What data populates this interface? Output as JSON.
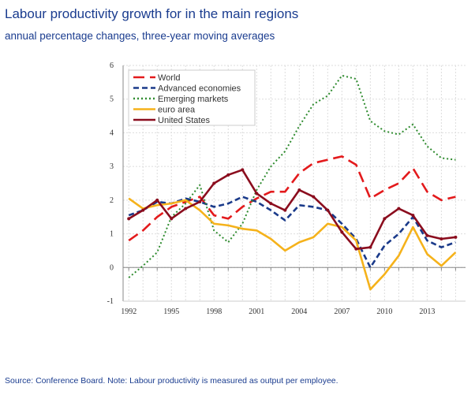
{
  "title": "Labour productivity growth for in the main regions",
  "subtitle": "annual percentage changes, three-year moving averages",
  "source": "Source: Conference Board. Note: Labour productivity is measured as output per employee.",
  "chart_data": {
    "type": "line",
    "title": "Labour productivity growth for in the main regions",
    "xlabel": "",
    "ylabel": "",
    "x": [
      1992,
      1993,
      1994,
      1995,
      1996,
      1997,
      1998,
      1999,
      2000,
      2001,
      2002,
      2003,
      2004,
      2005,
      2006,
      2007,
      2008,
      2009,
      2010,
      2011,
      2012,
      2013,
      2014,
      2015
    ],
    "xticks": [
      "1992",
      "1995",
      "1998",
      "2001",
      "2004",
      "2007",
      "2010",
      "2013"
    ],
    "yticks": [
      "-1",
      "0",
      "1",
      "2",
      "3",
      "4",
      "5",
      "6"
    ],
    "ylim": [
      -1,
      6
    ],
    "grid": true,
    "legend_position": "top-left",
    "series": [
      {
        "name": "World",
        "color": "#e31a1c",
        "dash": "14,7",
        "values": [
          0.8,
          1.1,
          1.5,
          1.8,
          1.95,
          2.1,
          1.55,
          1.45,
          1.8,
          2.05,
          2.25,
          2.25,
          2.8,
          3.1,
          3.2,
          3.3,
          3.05,
          2.05,
          2.3,
          2.5,
          2.95,
          2.25,
          2.0,
          2.1
        ]
      },
      {
        "name": "Advanced economies",
        "color": "#1a3a8a",
        "dash": "7,4",
        "values": [
          1.55,
          1.7,
          1.95,
          1.9,
          2.05,
          1.95,
          1.8,
          1.9,
          2.1,
          1.95,
          1.7,
          1.4,
          1.85,
          1.8,
          1.7,
          1.3,
          0.85,
          0.0,
          0.65,
          1.0,
          1.5,
          0.8,
          0.6,
          0.75
        ]
      },
      {
        "name": "Emerging markets",
        "color": "#2e8b2e",
        "dash": "2,3",
        "values": [
          -0.3,
          0.05,
          0.45,
          1.5,
          1.9,
          2.45,
          1.1,
          0.75,
          1.3,
          2.3,
          3.0,
          3.45,
          4.2,
          4.85,
          5.1,
          5.7,
          5.6,
          4.35,
          4.05,
          3.95,
          4.25,
          3.6,
          3.25,
          3.2
        ]
      },
      {
        "name": "euro area",
        "color": "#f5b21b",
        "dash": "",
        "values": [
          2.05,
          1.75,
          1.85,
          1.9,
          2.0,
          1.7,
          1.3,
          1.25,
          1.15,
          1.1,
          0.85,
          0.5,
          0.75,
          0.9,
          1.3,
          1.2,
          0.8,
          -0.65,
          -0.2,
          0.35,
          1.2,
          0.4,
          0.05,
          0.45
        ]
      },
      {
        "name": "United States",
        "color": "#8b0d1e",
        "dash": "",
        "markers": true,
        "values": [
          1.45,
          1.7,
          2.0,
          1.45,
          1.75,
          1.95,
          2.5,
          2.75,
          2.9,
          2.2,
          1.9,
          1.7,
          2.3,
          2.1,
          1.7,
          1.05,
          0.55,
          0.6,
          1.45,
          1.75,
          1.55,
          0.95,
          0.85,
          0.9
        ]
      }
    ]
  }
}
